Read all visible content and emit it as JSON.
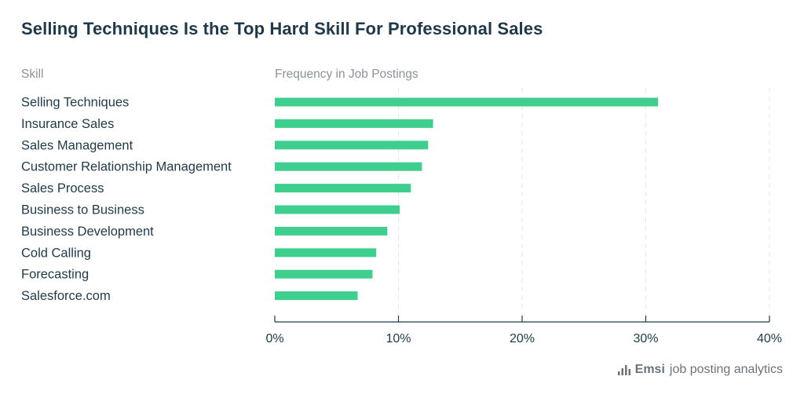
{
  "chart_data": {
    "type": "bar",
    "orientation": "horizontal",
    "title": "Selling Techniques Is the Top Hard Skill For Professional Sales",
    "category_header": "Skill",
    "value_header": "Frequency in Job Postings",
    "categories": [
      "Selling Techniques",
      "Insurance Sales",
      "Sales Management",
      "Customer Relationship Management",
      "Sales Process",
      "Business to Business",
      "Business Development",
      "Cold Calling",
      "Forecasting",
      "Salesforce.com"
    ],
    "values": [
      31.0,
      12.8,
      12.4,
      11.9,
      11.0,
      10.1,
      9.1,
      8.2,
      7.9,
      6.7
    ],
    "xlim": [
      0,
      40
    ],
    "xticks": [
      "0%",
      "10%",
      "20%",
      "30%",
      "40%"
    ],
    "grid": true,
    "bar_color": "#3ecf8e"
  },
  "footer": {
    "brand": "Emsi",
    "tagline": "job posting analytics",
    "logo_icon": "bar-chart-icon"
  },
  "colors": {
    "title": "#1e3a4a",
    "text": "#1e3a4a",
    "muted": "#8a9399",
    "bar": "#3ecf8e"
  }
}
